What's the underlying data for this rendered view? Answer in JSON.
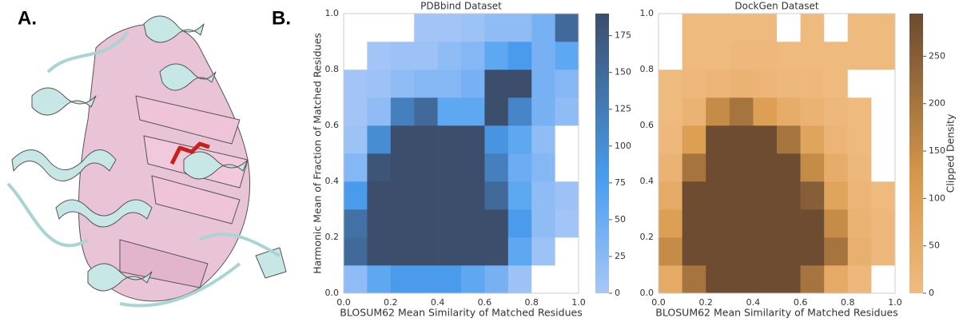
{
  "panel_a": {
    "label": "A."
  },
  "panel_b": {
    "label": "B."
  },
  "chart_data": [
    {
      "type": "hist2d",
      "title": "PDBbind Dataset",
      "x_label": "BLOSUM62 Mean Similarity of Matched Residues",
      "y_label": "Harmonic Mean of Fraction of Matched Residues",
      "x_bins": [
        0,
        0.1,
        0.2,
        0.3,
        0.4,
        0.5,
        0.6,
        0.7,
        0.8,
        0.9,
        1
      ],
      "y_bins": [
        0,
        0.1,
        0.2,
        0.3,
        0.4,
        0.5,
        0.6,
        0.7,
        0.8,
        0.9,
        1
      ],
      "values": [
        [
          20,
          60,
          80,
          80,
          80,
          60,
          40,
          10,
          0,
          0
        ],
        [
          150,
          190,
          190,
          190,
          190,
          190,
          190,
          60,
          10,
          0
        ],
        [
          140,
          190,
          190,
          190,
          190,
          190,
          190,
          80,
          20,
          5
        ],
        [
          80,
          190,
          190,
          190,
          190,
          190,
          150,
          60,
          20,
          10
        ],
        [
          30,
          180,
          190,
          190,
          190,
          190,
          120,
          50,
          30,
          0
        ],
        [
          10,
          100,
          190,
          190,
          190,
          190,
          90,
          60,
          20,
          0
        ],
        [
          5,
          20,
          120,
          150,
          60,
          60,
          190,
          110,
          40,
          20
        ],
        [
          5,
          10,
          20,
          30,
          30,
          40,
          190,
          190,
          40,
          30
        ],
        [
          0,
          5,
          10,
          10,
          20,
          30,
          60,
          80,
          40,
          60
        ],
        [
          0,
          0,
          0,
          5,
          5,
          10,
          20,
          20,
          40,
          150
        ]
      ],
      "xlim": [
        0,
        1
      ],
      "ylim": [
        0,
        1
      ],
      "xticks": [
        {
          "value": 0,
          "label": "0.0"
        },
        0.2,
        0.4,
        0.6,
        0.8,
        {
          "value": 1,
          "label": "1.0"
        }
      ],
      "yticks": [
        {
          "value": 0,
          "label": "0.0"
        },
        0.2,
        0.4,
        0.6,
        0.8,
        {
          "value": 1,
          "label": "1.0"
        }
      ],
      "clim": [
        0,
        190
      ],
      "cticks": [
        0,
        25,
        50,
        75,
        100,
        125,
        150,
        175
      ],
      "colors": [
        "#a9c7f7",
        "#4a9ef0",
        "#3c4e6b"
      ]
    },
    {
      "type": "hist2d",
      "title": "DockGen Dataset",
      "x_label": "BLOSUM62 Mean Similarity of Matched Residues",
      "colorbar_label": "Clipped Density",
      "x_bins": [
        0,
        0.1,
        0.2,
        0.3,
        0.4,
        0.5,
        0.6,
        0.7,
        0.8,
        0.9,
        1
      ],
      "y_bins": [
        0,
        0.1,
        0.2,
        0.3,
        0.4,
        0.5,
        0.6,
        0.7,
        0.8,
        0.9,
        1
      ],
      "values": [
        [
          60,
          200,
          290,
          290,
          290,
          290,
          200,
          60,
          10,
          0
        ],
        [
          150,
          290,
          290,
          290,
          290,
          290,
          290,
          200,
          40,
          10
        ],
        [
          100,
          290,
          290,
          290,
          290,
          290,
          290,
          150,
          30,
          10
        ],
        [
          60,
          290,
          290,
          290,
          290,
          290,
          250,
          80,
          20,
          5
        ],
        [
          30,
          200,
          290,
          290,
          290,
          290,
          150,
          50,
          10,
          0
        ],
        [
          10,
          100,
          290,
          290,
          290,
          200,
          80,
          20,
          5,
          0
        ],
        [
          5,
          30,
          150,
          200,
          100,
          50,
          30,
          10,
          5,
          0
        ],
        [
          5,
          10,
          20,
          30,
          20,
          10,
          10,
          5,
          0,
          0
        ],
        [
          0,
          5,
          5,
          10,
          10,
          5,
          5,
          5,
          5,
          5
        ],
        [
          0,
          5,
          5,
          5,
          5,
          0,
          5,
          0,
          5,
          5
        ]
      ],
      "xlim": [
        0,
        1
      ],
      "ylim": [
        0,
        1
      ],
      "xticks": [
        {
          "value": 0,
          "label": "0.0"
        },
        0.2,
        0.4,
        0.6,
        0.8,
        {
          "value": 1,
          "label": "1.0"
        }
      ],
      "yticks": [
        {
          "value": 0,
          "label": "0.0"
        },
        0.2,
        0.4,
        0.6,
        0.8,
        {
          "value": 1,
          "label": "1.0"
        }
      ],
      "clim": [
        0,
        295
      ],
      "cticks": [
        0,
        50,
        100,
        150,
        200,
        250
      ],
      "colors": [
        "#f0bb80",
        "#d99a4c",
        "#6a4a30"
      ]
    }
  ]
}
